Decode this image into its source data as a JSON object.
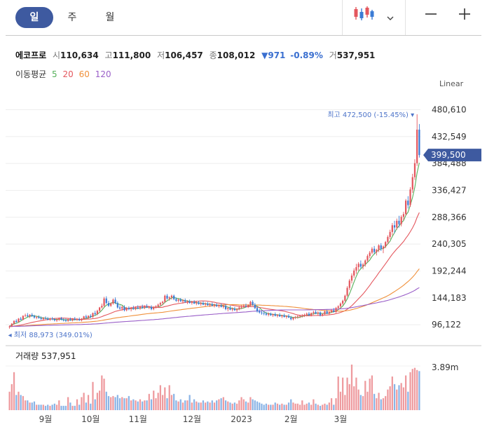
{
  "period_tabs": [
    "일",
    "주",
    "월"
  ],
  "active_period": "일",
  "toolbar": {
    "chart_type_icon": "candlestick-icon",
    "dropdown_icon": "chevron-down-icon",
    "zoom_out_icon": "minus-icon",
    "zoom_in_icon": "plus-icon"
  },
  "stock": {
    "name": "에코프로",
    "open_label": "시",
    "open": "110,634",
    "high_label": "고",
    "high": "111,800",
    "low_label": "저",
    "low": "106,457",
    "close_label": "종",
    "close": "108,012",
    "change": "▼971",
    "change_pct": "-0.89%",
    "volume_label": "거",
    "volume": "537,951"
  },
  "moving_average": {
    "label": "이동평균",
    "periods": [
      {
        "period": "5",
        "color": "#55b05a"
      },
      {
        "period": "20",
        "color": "#e4575e"
      },
      {
        "period": "60",
        "color": "#f0903a"
      },
      {
        "period": "120",
        "color": "#9a5fc8"
      }
    ]
  },
  "scale_label": "Linear",
  "colors": {
    "up": "#e4575e",
    "down": "#3a7bd5",
    "accent": "#3e5aa0",
    "current_tag": "#3e5aa0"
  },
  "chart_data": {
    "type": "candlestick",
    "x_labels": [
      "9월",
      "10월",
      "11월",
      "12월",
      "2023",
      "2월",
      "3월"
    ],
    "y_ticks": [
      "480,610",
      "432,549",
      "384,488",
      "336,427",
      "288,366",
      "240,305",
      "192,244",
      "144,183",
      "96,122"
    ],
    "ylim": [
      75000,
      495000
    ],
    "max_annotation": "최고 472,500 (-15.45%)",
    "min_annotation": "최저 88,973 (349.01%)",
    "current_price_label": "399,500",
    "current_price": 399500,
    "volume_label": "거래량",
    "volume_value": "537,951",
    "volume_axis_label": "3.89m",
    "volume_ylim": [
      0,
      4200000
    ],
    "candles": [
      [
        92000,
        95000,
        89000,
        93000,
        1700000
      ],
      [
        93000,
        99000,
        92000,
        98000,
        2400000
      ],
      [
        98000,
        104000,
        96000,
        103000,
        3500000
      ],
      [
        103000,
        106000,
        100000,
        101000,
        1400000
      ],
      [
        101000,
        108000,
        100000,
        107000,
        1700000
      ],
      [
        107000,
        110000,
        104000,
        105000,
        1400000
      ],
      [
        105000,
        113000,
        104000,
        112000,
        1300000
      ],
      [
        112000,
        116000,
        110000,
        113000,
        900000
      ],
      [
        113000,
        117000,
        110000,
        111000,
        900000
      ],
      [
        111000,
        115000,
        108000,
        114000,
        700000
      ],
      [
        114000,
        117000,
        110000,
        112000,
        700000
      ],
      [
        112000,
        114000,
        107000,
        109000,
        800000
      ],
      [
        109000,
        112000,
        106000,
        110000,
        500000
      ],
      [
        110000,
        113000,
        107000,
        108000,
        500000
      ],
      [
        108000,
        111000,
        105000,
        106000,
        500000
      ],
      [
        106000,
        110000,
        104000,
        108000,
        500000
      ],
      [
        108000,
        111000,
        106000,
        107000,
        400000
      ],
      [
        107000,
        110000,
        104000,
        105000,
        500000
      ],
      [
        105000,
        109000,
        103000,
        107000,
        400000
      ],
      [
        107000,
        110000,
        104000,
        106000,
        500000
      ],
      [
        106000,
        108000,
        102000,
        104000,
        600000
      ],
      [
        104000,
        107000,
        101000,
        105000,
        500000
      ],
      [
        105000,
        109000,
        103000,
        108000,
        900000
      ],
      [
        108000,
        110000,
        104000,
        105000,
        400000
      ],
      [
        105000,
        108000,
        102000,
        104000,
        400000
      ],
      [
        104000,
        107000,
        101000,
        103000,
        400000
      ],
      [
        103000,
        107000,
        101000,
        106000,
        1200000
      ],
      [
        106000,
        109000,
        103000,
        104000,
        700000
      ],
      [
        104000,
        108000,
        102000,
        107000,
        400000
      ],
      [
        107000,
        110000,
        104000,
        105000,
        400000
      ],
      [
        105000,
        108000,
        103000,
        106000,
        1000000
      ],
      [
        106000,
        109000,
        103000,
        104000,
        500000
      ],
      [
        104000,
        108000,
        102000,
        107000,
        1200000
      ],
      [
        107000,
        112000,
        105000,
        111000,
        1600000
      ],
      [
        111000,
        114000,
        107000,
        109000,
        700000
      ],
      [
        109000,
        113000,
        106000,
        112000,
        1400000
      ],
      [
        112000,
        115000,
        108000,
        110000,
        600000
      ],
      [
        110000,
        118000,
        108000,
        117000,
        2600000
      ],
      [
        117000,
        121000,
        113000,
        115000,
        1000000
      ],
      [
        115000,
        123000,
        113000,
        121000,
        1600000
      ],
      [
        121000,
        128000,
        119000,
        127000,
        1800000
      ],
      [
        127000,
        134000,
        125000,
        130000,
        3200000
      ],
      [
        130000,
        146000,
        128000,
        143000,
        2900000
      ],
      [
        143000,
        147000,
        133000,
        135000,
        1700000
      ],
      [
        135000,
        139000,
        128000,
        130000,
        1300000
      ],
      [
        130000,
        136000,
        128000,
        134000,
        1200000
      ],
      [
        134000,
        143000,
        132000,
        141000,
        1300000
      ],
      [
        141000,
        145000,
        133000,
        135000,
        1200000
      ],
      [
        135000,
        138000,
        125000,
        127000,
        1400000
      ],
      [
        127000,
        131000,
        123000,
        125000,
        1100000
      ],
      [
        125000,
        130000,
        121000,
        128000,
        1200000
      ],
      [
        128000,
        131000,
        120000,
        122000,
        1100000
      ],
      [
        122000,
        128000,
        120000,
        126000,
        1100000
      ],
      [
        126000,
        129000,
        122000,
        124000,
        1300000
      ],
      [
        124000,
        128000,
        120000,
        126000,
        900000
      ],
      [
        126000,
        130000,
        123000,
        124000,
        1000000
      ],
      [
        124000,
        129000,
        122000,
        127000,
        900000
      ],
      [
        127000,
        131000,
        124000,
        125000,
        800000
      ],
      [
        125000,
        130000,
        123000,
        128000,
        1000000
      ],
      [
        128000,
        132000,
        125000,
        126000,
        800000
      ],
      [
        126000,
        131000,
        124000,
        129000,
        900000
      ],
      [
        129000,
        133000,
        126000,
        127000,
        900000
      ],
      [
        127000,
        130000,
        124000,
        128000,
        1500000
      ],
      [
        128000,
        131000,
        122000,
        124000,
        1000000
      ],
      [
        124000,
        129000,
        122000,
        127000,
        1800000
      ],
      [
        127000,
        131000,
        125000,
        129000,
        1100000
      ],
      [
        129000,
        134000,
        127000,
        132000,
        1600000
      ],
      [
        132000,
        137000,
        129000,
        135000,
        2300000
      ],
      [
        135000,
        139000,
        131000,
        137000,
        1400000
      ],
      [
        137000,
        150000,
        135000,
        148000,
        2100000
      ],
      [
        148000,
        151000,
        141000,
        143000,
        1100000
      ],
      [
        143000,
        147000,
        139000,
        145000,
        2300000
      ],
      [
        145000,
        150000,
        141000,
        148000,
        1400000
      ],
      [
        148000,
        150000,
        140000,
        142000,
        1500000
      ],
      [
        142000,
        145000,
        137000,
        139000,
        900000
      ],
      [
        139000,
        143000,
        136000,
        141000,
        800000
      ],
      [
        141000,
        144000,
        137000,
        138000,
        1000000
      ],
      [
        138000,
        142000,
        134000,
        140000,
        700000
      ],
      [
        140000,
        143000,
        135000,
        137000,
        900000
      ],
      [
        137000,
        140000,
        133000,
        138000,
        900000
      ],
      [
        138000,
        141000,
        134000,
        135000,
        1400000
      ],
      [
        135000,
        139000,
        132000,
        137000,
        700000
      ],
      [
        137000,
        140000,
        133000,
        134000,
        1000000
      ],
      [
        134000,
        138000,
        131000,
        136000,
        800000
      ],
      [
        136000,
        139000,
        132000,
        133000,
        700000
      ],
      [
        133000,
        137000,
        130000,
        135000,
        700000
      ],
      [
        135000,
        138000,
        131000,
        132000,
        900000
      ],
      [
        132000,
        136000,
        129000,
        134000,
        700000
      ],
      [
        134000,
        137000,
        130000,
        131000,
        800000
      ],
      [
        131000,
        135000,
        128000,
        133000,
        700000
      ],
      [
        133000,
        136000,
        129000,
        130000,
        900000
      ],
      [
        130000,
        134000,
        127000,
        132000,
        700000
      ],
      [
        132000,
        135000,
        128000,
        129000,
        900000
      ],
      [
        129000,
        133000,
        126000,
        131000,
        1000000
      ],
      [
        131000,
        134000,
        127000,
        128000,
        1100000
      ],
      [
        128000,
        132000,
        125000,
        130000,
        1200000
      ],
      [
        130000,
        133000,
        122000,
        124000,
        900000
      ],
      [
        124000,
        128000,
        120000,
        126000,
        800000
      ],
      [
        126000,
        130000,
        122000,
        123000,
        700000
      ],
      [
        123000,
        127000,
        120000,
        125000,
        600000
      ],
      [
        125000,
        128000,
        121000,
        122000,
        700000
      ],
      [
        122000,
        126000,
        119000,
        124000,
        600000
      ],
      [
        124000,
        129000,
        122000,
        127000,
        900000
      ],
      [
        127000,
        131000,
        124000,
        128000,
        1200000
      ],
      [
        128000,
        133000,
        126000,
        130000,
        1000000
      ],
      [
        130000,
        134000,
        127000,
        129000,
        800000
      ],
      [
        129000,
        133000,
        126000,
        131000,
        700000
      ],
      [
        131000,
        139000,
        129000,
        137000,
        1200000
      ],
      [
        137000,
        140000,
        130000,
        132000,
        1000000
      ],
      [
        132000,
        135000,
        124000,
        126000,
        900000
      ],
      [
        126000,
        129000,
        118000,
        120000,
        800000
      ],
      [
        120000,
        124000,
        116000,
        118000,
        700000
      ],
      [
        118000,
        121000,
        114000,
        117000,
        600000
      ],
      [
        117000,
        120000,
        113000,
        116000,
        500000
      ],
      [
        116000,
        119000,
        112000,
        114000,
        600000
      ],
      [
        114000,
        118000,
        111000,
        116000,
        500000
      ],
      [
        116000,
        118000,
        112000,
        113000,
        500000
      ],
      [
        113000,
        116000,
        110000,
        115000,
        500000
      ],
      [
        115000,
        118000,
        111000,
        112000,
        700000
      ],
      [
        112000,
        115000,
        109000,
        114000,
        600000
      ],
      [
        114000,
        117000,
        110000,
        111000,
        500000
      ],
      [
        111000,
        114000,
        108000,
        113000,
        600000
      ],
      [
        113000,
        116000,
        109000,
        110000,
        500000
      ],
      [
        110000,
        113000,
        107000,
        112000,
        500000
      ],
      [
        112000,
        115000,
        108000,
        109000,
        700000
      ],
      [
        109000,
        112000,
        104000,
        106000,
        1000000
      ],
      [
        106000,
        110000,
        104000,
        109000,
        700000
      ],
      [
        109000,
        112000,
        106000,
        110000,
        600000
      ],
      [
        110000,
        113000,
        107000,
        111000,
        600000
      ],
      [
        111000,
        114000,
        108000,
        112000,
        500000
      ],
      [
        112000,
        115000,
        109000,
        113000,
        900000
      ],
      [
        113000,
        116000,
        110000,
        114000,
        500000
      ],
      [
        114000,
        118000,
        111000,
        116000,
        600000
      ],
      [
        116000,
        119000,
        112000,
        113000,
        700000
      ],
      [
        113000,
        118000,
        111000,
        117000,
        500000
      ],
      [
        117000,
        121000,
        114000,
        119000,
        1000000
      ],
      [
        119000,
        122000,
        115000,
        116000,
        600000
      ],
      [
        116000,
        120000,
        113000,
        118000,
        500000
      ],
      [
        118000,
        120000,
        111000,
        113000,
        400000
      ],
      [
        113000,
        117000,
        111000,
        115000,
        500000
      ],
      [
        115000,
        121000,
        113000,
        120000,
        600000
      ],
      [
        120000,
        123000,
        115000,
        116000,
        500000
      ],
      [
        116000,
        120000,
        113000,
        119000,
        700000
      ],
      [
        119000,
        124000,
        117000,
        122000,
        1100000
      ],
      [
        122000,
        126000,
        118000,
        119000,
        500000
      ],
      [
        119000,
        128000,
        117000,
        126000,
        1100000
      ],
      [
        126000,
        131000,
        123000,
        129000,
        3100000
      ],
      [
        129000,
        136000,
        126000,
        134000,
        1700000
      ],
      [
        134000,
        141000,
        131000,
        139000,
        3000000
      ],
      [
        139000,
        150000,
        137000,
        148000,
        1400000
      ],
      [
        148000,
        165000,
        146000,
        162000,
        3000000
      ],
      [
        162000,
        178000,
        158000,
        175000,
        2400000
      ],
      [
        175000,
        188000,
        170000,
        184000,
        4200000
      ],
      [
        184000,
        197000,
        180000,
        193000,
        2200000
      ],
      [
        193000,
        205000,
        187000,
        199000,
        3000000
      ],
      [
        199000,
        208000,
        193000,
        205000,
        1900000
      ],
      [
        205000,
        211000,
        197000,
        200000,
        1400000
      ],
      [
        200000,
        207000,
        195000,
        204000,
        1300000
      ],
      [
        204000,
        213000,
        200000,
        211000,
        2700000
      ],
      [
        211000,
        222000,
        208000,
        219000,
        1700000
      ],
      [
        219000,
        228000,
        215000,
        225000,
        2900000
      ],
      [
        225000,
        235000,
        222000,
        232000,
        3200000
      ],
      [
        232000,
        237000,
        223000,
        226000,
        1500000
      ],
      [
        226000,
        232000,
        220000,
        230000,
        1100000
      ],
      [
        230000,
        240000,
        226000,
        238000,
        1600000
      ],
      [
        238000,
        242000,
        228000,
        232000,
        1000000
      ],
      [
        232000,
        238000,
        224000,
        236000,
        1100000
      ],
      [
        236000,
        246000,
        233000,
        244000,
        1300000
      ],
      [
        244000,
        256000,
        240000,
        253000,
        1900000
      ],
      [
        253000,
        266000,
        249000,
        262000,
        2200000
      ],
      [
        262000,
        278000,
        256000,
        274000,
        3100000
      ],
      [
        274000,
        282000,
        260000,
        270000,
        2400000
      ],
      [
        270000,
        286000,
        266000,
        282000,
        1900000
      ],
      [
        282000,
        291000,
        270000,
        276000,
        2300000
      ],
      [
        276000,
        292000,
        272000,
        289000,
        2500000
      ],
      [
        289000,
        298000,
        283000,
        294000,
        2100000
      ],
      [
        294000,
        321000,
        291000,
        318000,
        3200000
      ],
      [
        318000,
        326000,
        304000,
        310000,
        1700000
      ],
      [
        310000,
        342000,
        307000,
        338000,
        3500000
      ],
      [
        338000,
        366000,
        332000,
        360000,
        3800000
      ],
      [
        360000,
        392000,
        355000,
        385000,
        3900000
      ],
      [
        385000,
        472500,
        380000,
        445000,
        3700000
      ],
      [
        445000,
        455000,
        395000,
        399500,
        3600000
      ]
    ]
  }
}
